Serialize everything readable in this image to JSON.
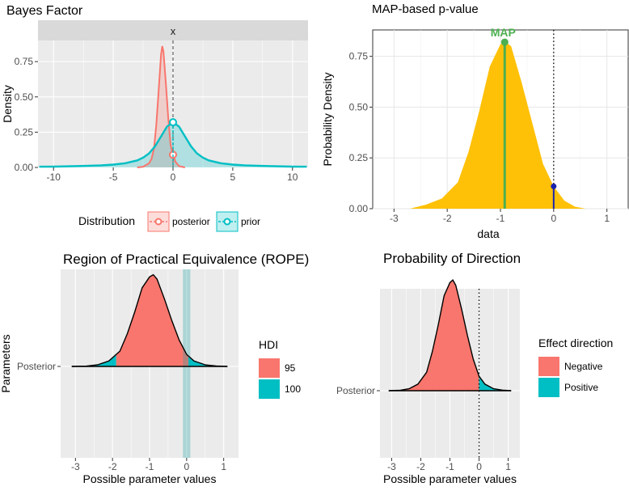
{
  "chart_data": [
    {
      "type": "area",
      "title": "Bayes Factor",
      "xlabel": "",
      "ylabel": "Density",
      "facet_label": "x",
      "xlim": [
        -11.3,
        11.3
      ],
      "ylim": [
        0,
        0.9
      ],
      "x_ticks": [
        -10,
        -5,
        0,
        5,
        10
      ],
      "y_ticks": [
        "0.00",
        "0.25",
        "0.50",
        "0.75"
      ],
      "y_tick_values": [
        0,
        0.25,
        0.5,
        0.75
      ],
      "grid": true,
      "legend": {
        "title": "Distribution",
        "placement": "bottom",
        "entries": [
          "posterior",
          "prior"
        ]
      },
      "series": [
        {
          "name": "posterior",
          "color": "#F8766D",
          "x": [
            -3.0,
            -2.5,
            -2.0,
            -1.8,
            -1.6,
            -1.4,
            -1.2,
            -1.0,
            -0.9,
            -0.8,
            -0.6,
            -0.4,
            -0.2,
            0.0,
            0.2,
            0.5,
            1.0
          ],
          "y": [
            0.0,
            0.005,
            0.03,
            0.06,
            0.13,
            0.3,
            0.55,
            0.8,
            0.86,
            0.82,
            0.6,
            0.35,
            0.16,
            0.09,
            0.04,
            0.01,
            0.0
          ]
        },
        {
          "name": "prior",
          "color": "#00BFC4",
          "x": [
            -11.2,
            -10,
            -8,
            -6,
            -5,
            -4,
            -3,
            -2.5,
            -2,
            -1.5,
            -1,
            -0.5,
            0,
            0.5,
            1,
            1.5,
            2,
            2.5,
            3,
            4,
            5,
            6,
            8,
            10,
            11.2
          ],
          "y": [
            0.005,
            0.006,
            0.01,
            0.015,
            0.02,
            0.03,
            0.05,
            0.07,
            0.1,
            0.15,
            0.22,
            0.29,
            0.32,
            0.29,
            0.22,
            0.15,
            0.1,
            0.07,
            0.05,
            0.03,
            0.02,
            0.015,
            0.01,
            0.006,
            0.005
          ]
        }
      ],
      "points_at_zero": [
        {
          "name": "posterior",
          "x": 0,
          "y": 0.09
        },
        {
          "name": "prior",
          "x": 0,
          "y": 0.32
        }
      ]
    },
    {
      "type": "area",
      "title": "MAP-based p-value",
      "xlabel": "data",
      "ylabel": "Probability Density",
      "xlim": [
        -3.4,
        1.4
      ],
      "ylim": [
        0,
        0.88
      ],
      "x_ticks": [
        -3,
        -2,
        -1,
        0,
        1
      ],
      "y_ticks": [
        "0.00",
        "0.25",
        "0.50",
        "0.75"
      ],
      "y_tick_values": [
        0,
        0.25,
        0.5,
        0.75
      ],
      "grid": true,
      "color": "#FFC107",
      "x": [
        -2.7,
        -2.4,
        -2.1,
        -1.8,
        -1.6,
        -1.4,
        -1.2,
        -1.0,
        -0.9,
        -0.8,
        -0.6,
        -0.4,
        -0.2,
        0.0,
        0.2,
        0.4,
        0.6
      ],
      "y": [
        0.0,
        0.02,
        0.05,
        0.13,
        0.28,
        0.48,
        0.7,
        0.81,
        0.82,
        0.8,
        0.62,
        0.42,
        0.22,
        0.11,
        0.04,
        0.01,
        0.0
      ],
      "map": {
        "label": "MAP",
        "x": -0.92,
        "y": 0.82
      },
      "null": {
        "x": 0,
        "y": 0.11
      }
    },
    {
      "type": "area",
      "title": "Region of Practical Equivalence (ROPE)",
      "xlabel": "Possible parameter values",
      "ylabel": "Parameters",
      "y_category": "Posterior",
      "xlim": [
        -3.4,
        1.4
      ],
      "x_ticks": [
        -3,
        -2,
        -1,
        0,
        1
      ],
      "rope": [
        -0.1,
        0.1
      ],
      "hdi_95": [
        -1.9,
        0.05
      ],
      "legend": {
        "title": "HDI",
        "placement": "right",
        "entries": [
          "95",
          "100"
        ],
        "colors": [
          "#F8766D",
          "#00BFC4"
        ]
      },
      "x": [
        -3.1,
        -2.7,
        -2.4,
        -2.1,
        -1.8,
        -1.6,
        -1.4,
        -1.2,
        -1.0,
        -0.9,
        -0.8,
        -0.6,
        -0.4,
        -0.2,
        0.0,
        0.2,
        0.5,
        0.8,
        1.1
      ],
      "y": [
        0.0,
        0.003,
        0.015,
        0.05,
        0.14,
        0.3,
        0.5,
        0.72,
        0.82,
        0.84,
        0.8,
        0.62,
        0.42,
        0.24,
        0.11,
        0.05,
        0.015,
        0.004,
        0.0
      ]
    },
    {
      "type": "area",
      "title": "Probability of Direction",
      "xlabel": "Possible parameter values",
      "ylabel": "",
      "y_category": "Posterior",
      "xlim": [
        -3.4,
        1.4
      ],
      "x_ticks": [
        -3,
        -2,
        -1,
        0,
        1
      ],
      "legend": {
        "title": "Effect direction",
        "placement": "right",
        "entries": [
          "Negative",
          "Positive"
        ],
        "colors": [
          "#F8766D",
          "#00BFC4"
        ]
      },
      "x": [
        -3.1,
        -2.7,
        -2.4,
        -2.1,
        -1.8,
        -1.6,
        -1.4,
        -1.2,
        -1.0,
        -0.9,
        -0.8,
        -0.6,
        -0.4,
        -0.2,
        0.0,
        0.2,
        0.5,
        0.8,
        1.1
      ],
      "y": [
        0.0,
        0.003,
        0.015,
        0.05,
        0.14,
        0.3,
        0.5,
        0.72,
        0.82,
        0.84,
        0.8,
        0.62,
        0.42,
        0.24,
        0.11,
        0.05,
        0.015,
        0.004,
        0.0
      ]
    }
  ]
}
